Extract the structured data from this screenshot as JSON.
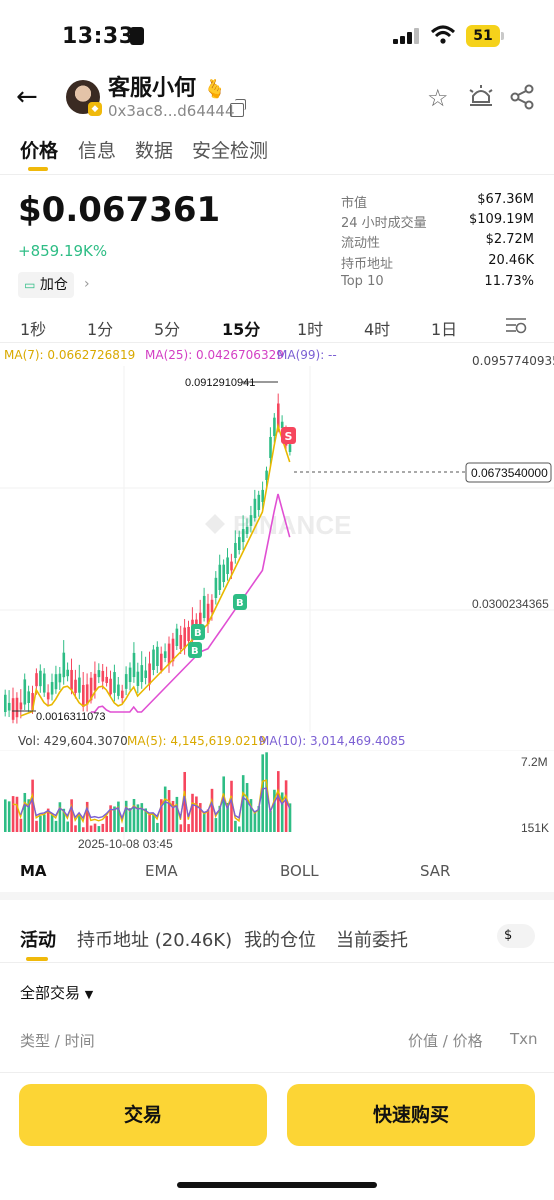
{
  "status_bar": {
    "time": "13:33",
    "battery": "51"
  },
  "header": {
    "token_name": "客服小何",
    "token_emoji": "🫰",
    "address": "0x3ac8...d64444"
  },
  "tabs": [
    {
      "label": "价格"
    },
    {
      "label": "信息"
    },
    {
      "label": "数据"
    },
    {
      "label": "安全检测"
    }
  ],
  "price": {
    "value": "$0.067361",
    "change": "+859.19K%",
    "position_button": "加仓"
  },
  "stats": [
    {
      "label": "市值",
      "value": "$67.36M"
    },
    {
      "label": "24 小时成交量",
      "value": "$109.19M"
    },
    {
      "label": "流动性",
      "value": "$2.72M"
    },
    {
      "label": "持币地址",
      "value": "20.46K"
    },
    {
      "label": "Top 10",
      "value": "11.73%"
    }
  ],
  "intervals": [
    {
      "label": "1秒"
    },
    {
      "label": "1分"
    },
    {
      "label": "5分"
    },
    {
      "label": "15分"
    },
    {
      "label": "1时"
    },
    {
      "label": "4时"
    },
    {
      "label": "1日"
    }
  ],
  "active_interval": "15分",
  "chart_legend": {
    "ma7": "MA(7): 0.0662726819",
    "ma25": "MA(25): 0.0426706329",
    "ma99": "MA(99): --"
  },
  "chart_labels": {
    "axis_top": "0.0957740935",
    "axis_mid": "0.0300234365",
    "current_price": "0.0673540000",
    "high": "0.0912910941",
    "low": "0.0016311073",
    "vol_top": "7.2M",
    "vol_bottom": "151K",
    "date": "2025-10-08 03:45",
    "watermark": "BINANCE"
  },
  "volume_legend": {
    "vol": "Vol: 429,604.3070",
    "ma5": "MA(5): 4,145,619.0219",
    "ma10": "MA(10): 3,014,469.4085"
  },
  "indicators": [
    {
      "label": "MA"
    },
    {
      "label": "EMA"
    },
    {
      "label": "BOLL"
    },
    {
      "label": "SAR"
    }
  ],
  "activity_tabs": [
    {
      "label": "活动"
    },
    {
      "label": "持币地址 (20.46K)"
    },
    {
      "label": "我的仓位"
    },
    {
      "label": "当前委托"
    }
  ],
  "currency_toggle": "$",
  "filter": "全部交易",
  "columns": {
    "type_time": "类型 / 时间",
    "value_price": "价值 / 价格",
    "txn": "Txn"
  },
  "bottom": {
    "trade": "交易",
    "quick_buy": "快速购买"
  },
  "colors": {
    "up": "#2ebd85",
    "down": "#f6465d",
    "accent": "#f0b90b",
    "button": "#fcd535",
    "ma7": "#e8b800",
    "ma25": "#e04fd3",
    "ma99": "#7b5fd3",
    "vol_ma10": "#7b5fd3"
  }
}
